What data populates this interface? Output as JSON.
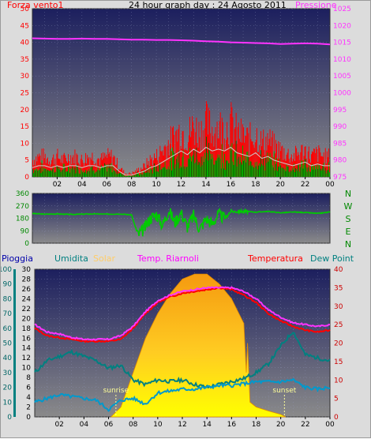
{
  "header": {
    "left_label": "Forza vento1",
    "title": "24 hour graph day : 24 Agosto 2011",
    "right_label": "Pressione"
  },
  "colors": {
    "background": "#dcdcdc",
    "plot_top": "#1c1f5e",
    "plot_bottom": "#8a8a8a",
    "wind_gust": "#ff0000",
    "wind_avg": "#00aa00",
    "wind_dark": "#006600",
    "wind_line": "#cccccc",
    "pressure": "#ff33ff",
    "direction": "#00cc00",
    "solar": "#ffcc00",
    "temperature": "#ff0000",
    "apparent_temp": "#ff33ff",
    "humidity": "#008080",
    "dew_point": "#0099cc",
    "rain": "#008080",
    "sun_label": "#ffff99"
  },
  "chart_data": [
    {
      "type": "line",
      "title": "24 hour graph day : 24 Agosto 2011",
      "x_ticks": [
        "02",
        "04",
        "06",
        "08",
        "10",
        "12",
        "14",
        "16",
        "18",
        "20",
        "22",
        "00"
      ],
      "xlim": [
        0,
        24
      ],
      "left_axis": {
        "label": "Forza vento1",
        "ticks": [
          0,
          5,
          10,
          15,
          20,
          25,
          30,
          35,
          40,
          45,
          50
        ],
        "lim": [
          0,
          50
        ]
      },
      "right_axis": {
        "label": "Pressione",
        "ticks": [
          975,
          980,
          985,
          990,
          995,
          1000,
          1005,
          1010,
          1015,
          1020,
          1025
        ],
        "lim": [
          975,
          1025
        ]
      },
      "series": [
        {
          "name": "Forza vento1",
          "axis": "left",
          "x": [
            0,
            0.5,
            1,
            1.5,
            2,
            2.5,
            3,
            3.5,
            4,
            4.5,
            5,
            5.5,
            6,
            6.5,
            7,
            7.5,
            8,
            8.5,
            9,
            9.5,
            10,
            10.5,
            11,
            11.5,
            12,
            12.5,
            13,
            13.5,
            14,
            14.5,
            15,
            15.5,
            16,
            16.5,
            17,
            17.5,
            18,
            18.5,
            19,
            19.5,
            20,
            20.5,
            21,
            21.5,
            22,
            22.5,
            23,
            23.5,
            24
          ],
          "values": [
            5,
            6,
            6,
            5,
            6,
            5,
            6,
            6,
            5,
            6,
            6,
            5,
            6,
            6,
            3,
            1,
            1,
            2,
            3,
            5,
            6,
            8,
            10,
            12,
            14,
            12,
            15,
            13,
            16,
            14,
            15,
            14,
            16,
            13,
            12,
            11,
            13,
            10,
            11,
            9,
            8,
            7,
            6,
            7,
            8,
            6,
            7,
            6,
            6
          ]
        },
        {
          "name": "Pressione",
          "axis": "right",
          "x": [
            0,
            1,
            2,
            3,
            4,
            5,
            6,
            7,
            8,
            9,
            10,
            11,
            12,
            13,
            14,
            15,
            16,
            17,
            18,
            19,
            20,
            21,
            22,
            23,
            24
          ],
          "values": [
            1016.2,
            1016.1,
            1016.0,
            1016.0,
            1016.1,
            1016.0,
            1016.0,
            1015.9,
            1015.8,
            1015.8,
            1015.7,
            1015.7,
            1015.6,
            1015.5,
            1015.3,
            1015.2,
            1015.0,
            1014.9,
            1014.8,
            1014.7,
            1014.5,
            1014.6,
            1014.7,
            1014.6,
            1014.4
          ]
        }
      ]
    },
    {
      "type": "line",
      "x_ticks": [
        "02",
        "04",
        "06",
        "08",
        "10",
        "12",
        "14",
        "16",
        "18",
        "20",
        "22",
        "00"
      ],
      "xlim": [
        0,
        24
      ],
      "y_ticks": [
        0,
        90,
        180,
        270,
        360
      ],
      "ylim": [
        0,
        360
      ],
      "right_labels": [
        "N",
        "W",
        "S",
        "E",
        "N"
      ],
      "series": [
        {
          "name": "Direction",
          "x": [
            0,
            1,
            2,
            3,
            4,
            5,
            6,
            7,
            8,
            8.5,
            9,
            9.5,
            10,
            10.5,
            11,
            11.5,
            12,
            12.5,
            13,
            13.5,
            14,
            14.5,
            15,
            15.5,
            16,
            17,
            18,
            19,
            20,
            21,
            22,
            23,
            24
          ],
          "values": [
            215,
            210,
            212,
            208,
            210,
            212,
            210,
            212,
            205,
            60,
            100,
            180,
            210,
            130,
            240,
            150,
            220,
            120,
            200,
            100,
            180,
            140,
            210,
            180,
            230,
            230,
            225,
            230,
            220,
            225,
            222,
            215,
            225
          ]
        }
      ]
    },
    {
      "type": "area",
      "legend": [
        "Pioggia",
        "Umidita",
        "Solar",
        "Temp. Riarnoli",
        "Temperatura",
        "Dew Point"
      ],
      "x_ticks": [
        "02",
        "04",
        "06",
        "08",
        "10",
        "12",
        "14",
        "16",
        "18",
        "20",
        "22",
        "00"
      ],
      "xlim": [
        0,
        24
      ],
      "rain_axis": {
        "ticks": [
          0,
          10,
          20,
          30,
          40,
          50,
          60,
          70,
          80,
          90,
          100
        ],
        "lim": [
          0,
          100
        ]
      },
      "mid_axis": {
        "ticks": [
          0,
          2,
          4,
          6,
          8,
          10,
          12,
          14,
          16,
          18,
          20,
          22,
          24,
          26,
          28,
          30
        ],
        "lim": [
          0,
          30
        ]
      },
      "temp_axis": {
        "ticks": [
          0,
          5,
          10,
          15,
          20,
          25,
          30,
          35,
          40
        ],
        "lim": [
          0,
          40
        ]
      },
      "annotations": [
        {
          "text": "sunrise",
          "x": 6.6
        },
        {
          "text": "sunset",
          "x": 20.3
        }
      ],
      "series": [
        {
          "name": "Solar",
          "axis": "mid",
          "x": [
            6.2,
            7,
            8,
            9,
            10,
            11,
            12,
            13,
            14,
            15,
            16,
            17,
            17.2,
            17.3,
            17.5,
            18,
            19,
            20,
            20.4
          ],
          "values": [
            0,
            2,
            9,
            16,
            21,
            25,
            28,
            29,
            29,
            27,
            24,
            19,
            9,
            15,
            3,
            2,
            1.2,
            0.5,
            0
          ]
        },
        {
          "name": "Temperatura",
          "axis": "temp",
          "x": [
            0,
            1,
            2,
            3,
            4,
            5,
            6,
            7,
            8,
            9,
            10,
            11,
            12,
            13,
            14,
            15,
            16,
            17,
            18,
            19,
            20,
            21,
            22,
            23,
            24
          ],
          "values": [
            24,
            22,
            21.5,
            21,
            20.5,
            20.5,
            20.5,
            21,
            24,
            28,
            31,
            32.5,
            33.5,
            34,
            34.5,
            35,
            34.5,
            33,
            31,
            28,
            26,
            24.5,
            23.5,
            23,
            23.5
          ]
        },
        {
          "name": "Temp. Riarnoli",
          "axis": "temp",
          "x": [
            0,
            1,
            2,
            3,
            4,
            5,
            6,
            7,
            8,
            9,
            10,
            11,
            12,
            13,
            14,
            15,
            16,
            17,
            18,
            19,
            20,
            21,
            22,
            23,
            24
          ],
          "values": [
            25,
            23,
            22.5,
            21.5,
            21,
            21,
            21,
            22,
            24.5,
            28.5,
            31.5,
            33,
            34,
            34.5,
            35,
            35,
            35,
            34,
            32,
            29,
            27,
            25.5,
            25,
            24.5,
            25
          ]
        },
        {
          "name": "Umidita",
          "axis": "rain",
          "x": [
            0,
            1,
            2,
            3,
            4,
            5,
            6,
            7,
            8,
            9,
            10,
            11,
            12,
            13,
            14,
            15,
            16,
            17,
            18,
            19,
            20,
            21,
            22,
            23,
            24
          ],
          "values": [
            30,
            38,
            41,
            44,
            41,
            38,
            33,
            35,
            25,
            22,
            25,
            24,
            25,
            22,
            20,
            22,
            24,
            26,
            30,
            36,
            48,
            58,
            42,
            40,
            38
          ]
        },
        {
          "name": "Dew Point",
          "axis": "temp",
          "x": [
            0,
            1,
            2,
            3,
            4,
            5,
            6,
            7,
            8,
            9,
            10,
            11,
            12,
            13,
            14,
            15,
            16,
            17,
            18,
            19,
            20,
            21,
            22,
            23,
            24
          ],
          "values": [
            4,
            5,
            6,
            5.5,
            5,
            4.5,
            2,
            4.5,
            5,
            3.5,
            6.5,
            7,
            7.5,
            7.5,
            8,
            8.5,
            8.5,
            9,
            9.5,
            9.5,
            9.5,
            10,
            8,
            7.5,
            8
          ]
        }
      ]
    }
  ]
}
